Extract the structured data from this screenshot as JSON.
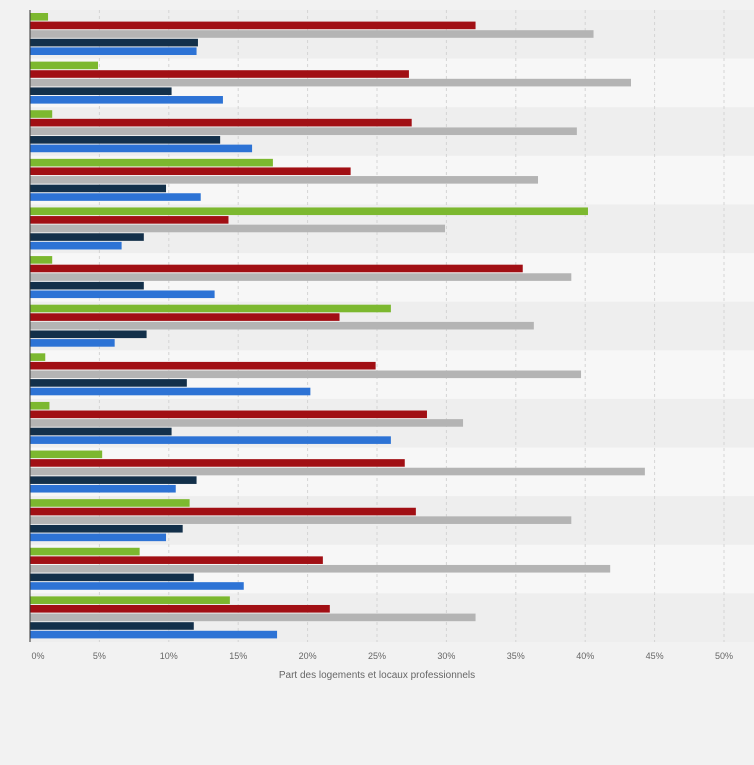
{
  "chart_data": {
    "type": "bar",
    "orientation": "horizontal",
    "title": "",
    "xlabel": "Part des logements et locaux professionnels",
    "ylabel": "",
    "xlim": [
      0,
      50
    ],
    "x_ticks": [
      0,
      5,
      10,
      15,
      20,
      25,
      30,
      35,
      40,
      45,
      50
    ],
    "x_tick_suffix": "%",
    "grid": true,
    "legend": "none",
    "category_count": 13,
    "series": [
      {
        "color": "#7cb82f",
        "values": [
          1.3,
          4.9,
          1.6,
          17.5,
          40.2,
          1.6,
          26.0,
          1.1,
          1.4,
          5.2,
          11.5,
          7.9,
          14.4
        ]
      },
      {
        "color": "#a10f14",
        "values": [
          32.1,
          27.3,
          27.5,
          23.1,
          14.3,
          35.5,
          22.3,
          24.9,
          28.6,
          27.0,
          27.8,
          21.1,
          21.6
        ]
      },
      {
        "color": "#b4b4b4",
        "values": [
          40.6,
          43.3,
          39.4,
          36.6,
          29.9,
          39.0,
          36.3,
          39.7,
          31.2,
          44.3,
          39.0,
          41.8,
          32.1
        ]
      },
      {
        "color": "#13304a",
        "values": [
          12.1,
          10.2,
          13.7,
          9.8,
          8.2,
          8.2,
          8.4,
          11.3,
          10.2,
          12.0,
          11.0,
          11.8,
          11.8
        ]
      },
      {
        "color": "#2d73d5",
        "values": [
          12.0,
          13.9,
          16.0,
          12.3,
          6.6,
          13.3,
          6.1,
          20.2,
          26.0,
          10.5,
          9.8,
          15.4,
          17.8
        ]
      }
    ]
  }
}
